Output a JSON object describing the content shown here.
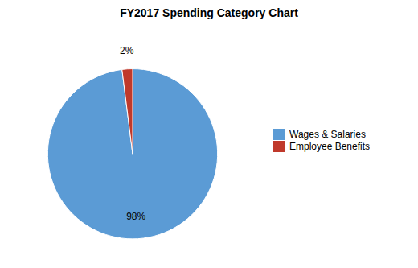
{
  "chart_data": {
    "type": "pie",
    "title": "FY2017 Spending Category Chart",
    "categories": [
      "Wages & Salaries",
      "Employee Benefits"
    ],
    "values": [
      98,
      2
    ],
    "value_labels": [
      "98%",
      "2%"
    ],
    "colors": [
      "#5b9bd5",
      "#c0392b"
    ],
    "data_labels": true,
    "legend": "right"
  }
}
